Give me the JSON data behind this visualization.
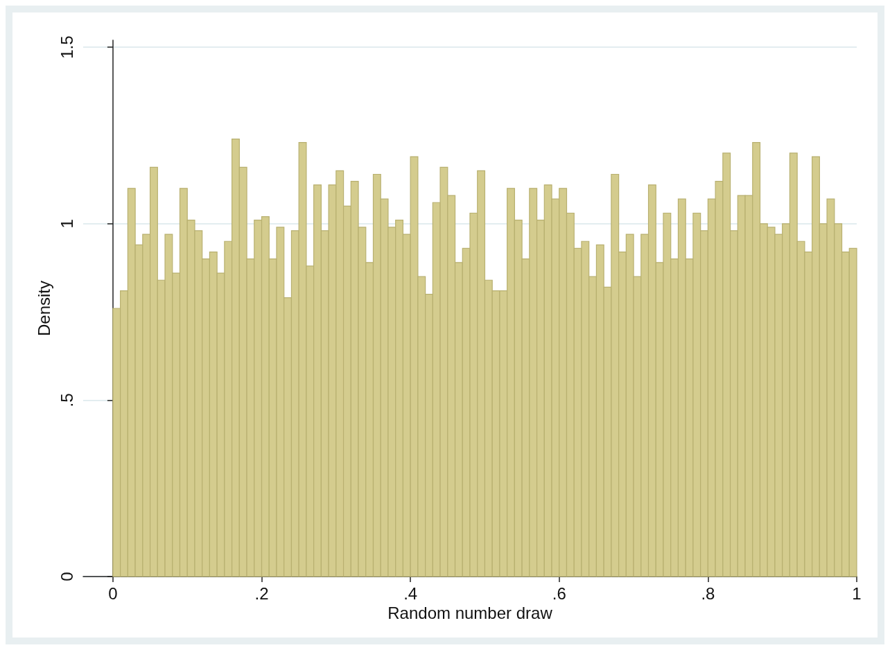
{
  "chart_data": {
    "type": "histogram",
    "xlabel": "Random number draw",
    "ylabel": "Density",
    "color": "#d4cc8e",
    "bins": [
      0,
      0.01,
      0.02,
      0.03,
      0.04,
      0.05,
      0.06,
      0.07,
      0.08,
      0.09,
      0.1,
      0.11,
      0.12,
      0.13,
      0.14,
      0.15,
      0.16,
      0.17,
      0.18,
      0.19,
      0.2,
      0.21,
      0.22,
      0.23,
      0.24,
      0.25,
      0.26,
      0.27,
      0.28,
      0.29,
      0.3,
      0.31,
      0.32,
      0.33,
      0.34,
      0.35,
      0.36,
      0.37,
      0.38,
      0.39,
      0.4,
      0.41,
      0.42,
      0.43,
      0.44,
      0.45,
      0.46,
      0.47,
      0.48,
      0.49,
      0.5,
      0.51,
      0.52,
      0.53,
      0.54,
      0.55,
      0.56,
      0.57,
      0.58,
      0.59,
      0.6,
      0.61,
      0.62,
      0.63,
      0.64,
      0.65,
      0.66,
      0.67,
      0.68,
      0.69,
      0.7,
      0.71,
      0.72,
      0.73,
      0.74,
      0.75,
      0.76,
      0.77,
      0.78,
      0.79,
      0.8,
      0.81,
      0.82,
      0.83,
      0.84,
      0.85,
      0.86,
      0.87,
      0.88,
      0.89,
      0.9,
      0.91,
      0.92,
      0.93,
      0.94,
      0.95,
      0.96,
      0.97,
      0.98,
      0.99,
      1
    ],
    "values": [
      0.76,
      0.81,
      1.1,
      0.94,
      0.97,
      1.16,
      0.84,
      0.97,
      0.86,
      1.1,
      1.01,
      0.98,
      0.9,
      0.92,
      0.86,
      0.95,
      1.24,
      1.16,
      0.9,
      1.01,
      1.02,
      0.9,
      0.99,
      0.79,
      0.98,
      1.23,
      0.88,
      1.11,
      0.98,
      1.11,
      1.15,
      1.05,
      1.12,
      0.99,
      0.89,
      1.14,
      1.07,
      0.99,
      1.01,
      0.97,
      1.19,
      0.85,
      0.8,
      1.06,
      1.16,
      1.08,
      0.89,
      0.93,
      1.03,
      1.15,
      0.84,
      0.81,
      0.81,
      1.1,
      1.01,
      0.9,
      1.1,
      1.01,
      1.11,
      1.07,
      1.1,
      1.03,
      0.93,
      0.95,
      0.85,
      0.94,
      0.82,
      1.14,
      0.92,
      0.97,
      0.85,
      0.97,
      1.11,
      0.89,
      1.03,
      0.9,
      1.07,
      0.9,
      1.03,
      0.98,
      1.07,
      1.12,
      1.2,
      0.98,
      1.08,
      1.08,
      1.23,
      1.0,
      0.99,
      0.97,
      1.0,
      1.2,
      0.95,
      0.92,
      1.19,
      1.0,
      1.07,
      1.0,
      0.92,
      0.93
    ],
    "xlim": [
      -0.04,
      1
    ],
    "xticks": [
      0,
      {
        "value": 0.2,
        "label": ".2"
      },
      {
        "value": 0.4,
        "label": ".4"
      },
      {
        "value": 0.6,
        "label": ".6"
      },
      {
        "value": 0.8,
        "label": ".8"
      },
      1
    ],
    "ylim": [
      0,
      1.52
    ],
    "yticks": [
      0,
      {
        "value": 0.5,
        "label": ".5"
      },
      1,
      1.5
    ],
    "grid": "y"
  }
}
